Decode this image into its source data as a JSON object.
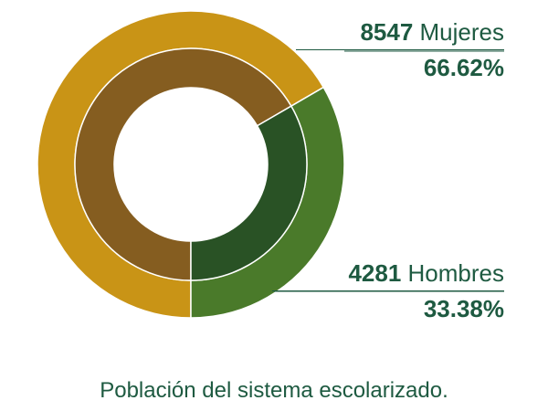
{
  "chart_data": {
    "type": "pie",
    "title": "",
    "caption": "Población del sistema escolarizado.",
    "series": [
      {
        "name": "Mujeres",
        "count": "8547",
        "label": "Mujeres",
        "percent": 66.62,
        "percent_label": "66.62%",
        "outer_color": "#c99416",
        "inner_color": "#855d20"
      },
      {
        "name": "Hombres",
        "count": "4281",
        "label": "Hombres",
        "percent": 33.38,
        "percent_label": "33.38%",
        "outer_color": "#4a7a2a",
        "inner_color": "#295225"
      }
    ]
  },
  "colors": {
    "text": "#1e5a41",
    "separator": "#ffffff"
  }
}
